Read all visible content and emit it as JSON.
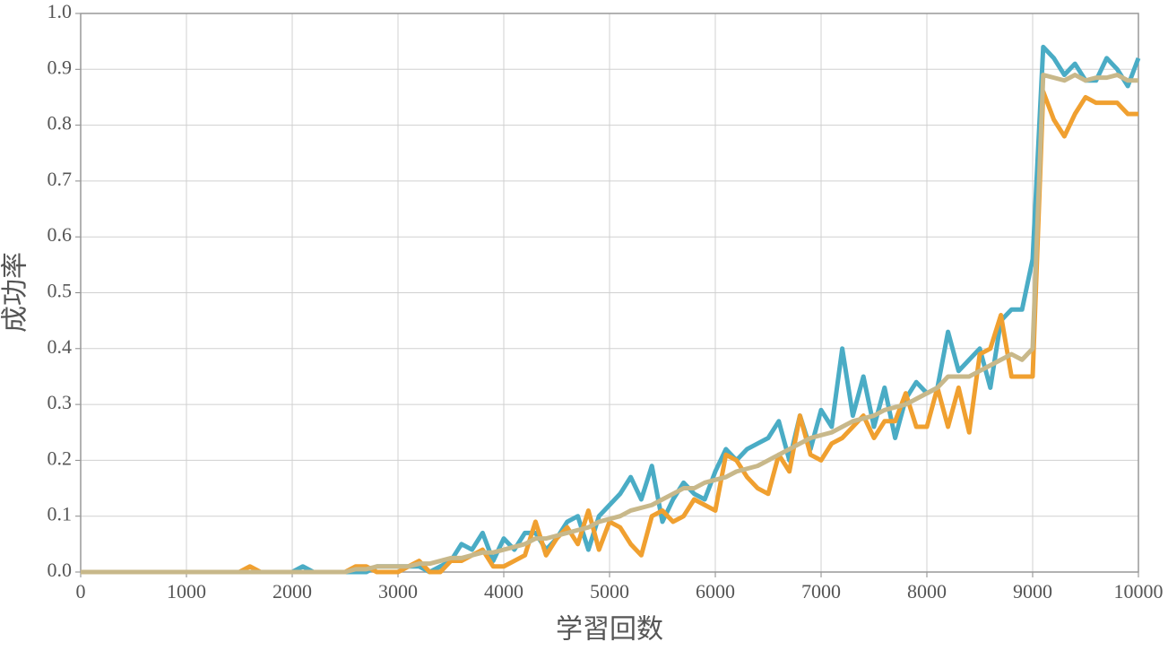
{
  "chart_data": {
    "type": "line",
    "xlabel": "学習回数",
    "ylabel": "成功率",
    "x": [
      0,
      100,
      200,
      300,
      400,
      500,
      600,
      700,
      800,
      900,
      1000,
      1100,
      1200,
      1300,
      1400,
      1500,
      1600,
      1700,
      1800,
      1900,
      2000,
      2100,
      2200,
      2300,
      2400,
      2500,
      2600,
      2700,
      2800,
      2900,
      3000,
      3100,
      3200,
      3300,
      3400,
      3500,
      3600,
      3700,
      3800,
      3900,
      4000,
      4100,
      4200,
      4300,
      4400,
      4500,
      4600,
      4700,
      4800,
      4900,
      5000,
      5100,
      5200,
      5300,
      5400,
      5500,
      5600,
      5700,
      5800,
      5900,
      6000,
      6100,
      6200,
      6300,
      6400,
      6500,
      6600,
      6700,
      6800,
      6900,
      7000,
      7100,
      7200,
      7300,
      7400,
      7500,
      7600,
      7700,
      7800,
      7900,
      8000,
      8100,
      8200,
      8300,
      8400,
      8500,
      8600,
      8700,
      8800,
      8900,
      9000,
      9100,
      9200,
      9300,
      9400,
      9500,
      9600,
      9700,
      9800,
      9900,
      10000
    ],
    "series": [
      {
        "color": "#4aacc5",
        "values": [
          0,
          0,
          0,
          0,
          0,
          0,
          0,
          0,
          0,
          0,
          0,
          0,
          0,
          0,
          0,
          0,
          0,
          0,
          0,
          0,
          0,
          0.01,
          0,
          0,
          0,
          0,
          0,
          0,
          0.01,
          0.01,
          0.01,
          0.01,
          0.01,
          0,
          0.01,
          0.02,
          0.05,
          0.04,
          0.07,
          0.02,
          0.06,
          0.04,
          0.07,
          0.07,
          0.04,
          0.06,
          0.09,
          0.1,
          0.04,
          0.1,
          0.12,
          0.14,
          0.17,
          0.13,
          0.19,
          0.09,
          0.13,
          0.16,
          0.14,
          0.13,
          0.18,
          0.22,
          0.2,
          0.22,
          0.23,
          0.24,
          0.27,
          0.2,
          0.28,
          0.22,
          0.29,
          0.26,
          0.4,
          0.28,
          0.35,
          0.26,
          0.33,
          0.24,
          0.31,
          0.34,
          0.32,
          0.33,
          0.43,
          0.36,
          0.38,
          0.4,
          0.33,
          0.45,
          0.47,
          0.47,
          0.56,
          0.94,
          0.92,
          0.89,
          0.91,
          0.88,
          0.88,
          0.92,
          0.9,
          0.87,
          0.92
        ]
      },
      {
        "color": "#f0a030",
        "values": [
          0,
          0,
          0,
          0,
          0,
          0,
          0,
          0,
          0,
          0,
          0,
          0,
          0,
          0,
          0,
          0,
          0.01,
          0,
          0,
          0,
          0,
          0,
          0,
          0,
          0,
          0,
          0.01,
          0.01,
          0,
          0,
          0,
          0.01,
          0.02,
          0,
          0,
          0.02,
          0.02,
          0.03,
          0.04,
          0.01,
          0.01,
          0.02,
          0.03,
          0.09,
          0.03,
          0.06,
          0.08,
          0.05,
          0.11,
          0.04,
          0.09,
          0.08,
          0.05,
          0.03,
          0.1,
          0.11,
          0.09,
          0.1,
          0.13,
          0.12,
          0.11,
          0.21,
          0.2,
          0.17,
          0.15,
          0.14,
          0.21,
          0.18,
          0.28,
          0.21,
          0.2,
          0.23,
          0.24,
          0.26,
          0.28,
          0.24,
          0.27,
          0.27,
          0.32,
          0.26,
          0.26,
          0.33,
          0.26,
          0.33,
          0.25,
          0.39,
          0.4,
          0.46,
          0.35,
          0.35,
          0.35,
          0.86,
          0.81,
          0.78,
          0.82,
          0.85,
          0.84,
          0.84,
          0.84,
          0.82,
          0.82
        ]
      },
      {
        "color": "#c8b88a",
        "values": [
          0,
          0,
          0,
          0,
          0,
          0,
          0,
          0,
          0,
          0,
          0,
          0,
          0,
          0,
          0,
          0,
          0,
          0,
          0,
          0,
          0,
          0,
          0,
          0,
          0,
          0,
          0.005,
          0.005,
          0.01,
          0.01,
          0.01,
          0.01,
          0.015,
          0.015,
          0.02,
          0.025,
          0.025,
          0.03,
          0.035,
          0.035,
          0.04,
          0.045,
          0.05,
          0.06,
          0.06,
          0.065,
          0.07,
          0.075,
          0.08,
          0.09,
          0.095,
          0.1,
          0.11,
          0.115,
          0.12,
          0.13,
          0.14,
          0.15,
          0.15,
          0.16,
          0.165,
          0.17,
          0.18,
          0.185,
          0.19,
          0.2,
          0.21,
          0.22,
          0.23,
          0.24,
          0.245,
          0.25,
          0.26,
          0.27,
          0.275,
          0.28,
          0.29,
          0.295,
          0.3,
          0.31,
          0.32,
          0.33,
          0.35,
          0.35,
          0.35,
          0.36,
          0.37,
          0.38,
          0.39,
          0.38,
          0.4,
          0.89,
          0.885,
          0.88,
          0.89,
          0.88,
          0.885,
          0.885,
          0.89,
          0.88,
          0.88
        ]
      }
    ],
    "xlim": [
      0,
      10000
    ],
    "xticks": [
      0,
      1000,
      2000,
      3000,
      4000,
      5000,
      6000,
      7000,
      8000,
      9000,
      10000
    ],
    "ylim": [
      0,
      1
    ],
    "yticks": [
      {
        "value": 0,
        "label": "0.0"
      },
      0.1,
      0.2,
      0.3,
      0.4,
      0.5,
      0.6,
      0.7,
      0.8,
      0.9,
      {
        "value": 1,
        "label": "1.0"
      }
    ],
    "grid": true
  }
}
